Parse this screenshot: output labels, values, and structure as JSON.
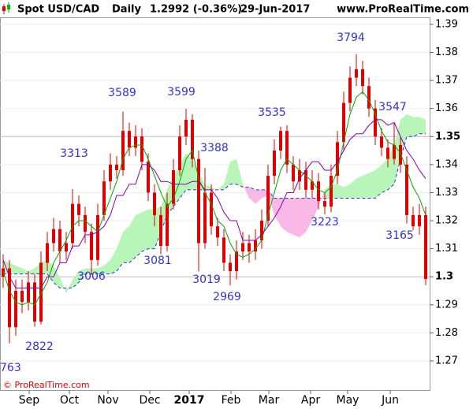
{
  "header": {
    "symbol": "Spot USD/CAD",
    "period": "Daily",
    "quote": "1.2992 (-0.36%)",
    "date": "29-Jun-2017",
    "site": "www.ProRealTime.com"
  },
  "chart_data": {
    "type": "candlestick",
    "candle_color": "#e00000",
    "ohlc": [
      [
        1.3,
        1.308,
        1.296,
        1.303
      ],
      [
        1.303,
        1.306,
        1.2763,
        1.282
      ],
      [
        1.282,
        1.299,
        1.279,
        1.295
      ],
      [
        1.295,
        1.299,
        1.287,
        1.291
      ],
      [
        1.291,
        1.302,
        1.288,
        1.298
      ],
      [
        1.298,
        1.301,
        1.2822,
        1.284
      ],
      [
        1.284,
        1.309,
        1.283,
        1.305
      ],
      [
        1.305,
        1.316,
        1.302,
        1.312
      ],
      [
        1.312,
        1.321,
        1.309,
        1.317
      ],
      [
        1.317,
        1.32,
        1.305,
        1.309
      ],
      [
        1.309,
        1.316,
        1.306,
        1.312
      ],
      [
        1.312,
        1.3313,
        1.31,
        1.326
      ],
      [
        1.326,
        1.329,
        1.318,
        1.322
      ],
      [
        1.322,
        1.325,
        1.312,
        1.316
      ],
      [
        1.316,
        1.319,
        1.3006,
        1.306
      ],
      [
        1.306,
        1.326,
        1.304,
        1.322
      ],
      [
        1.322,
        1.338,
        1.32,
        1.334
      ],
      [
        1.334,
        1.344,
        1.331,
        1.34
      ],
      [
        1.34,
        1.343,
        1.335,
        1.338
      ],
      [
        1.338,
        1.3589,
        1.336,
        1.352
      ],
      [
        1.352,
        1.355,
        1.343,
        1.346
      ],
      [
        1.346,
        1.354,
        1.343,
        1.35
      ],
      [
        1.35,
        1.353,
        1.338,
        1.341
      ],
      [
        1.341,
        1.344,
        1.327,
        1.33
      ],
      [
        1.33,
        1.333,
        1.318,
        1.322
      ],
      [
        1.322,
        1.325,
        1.3081,
        1.311
      ],
      [
        1.311,
        1.33,
        1.309,
        1.326
      ],
      [
        1.326,
        1.342,
        1.324,
        1.338
      ],
      [
        1.338,
        1.354,
        1.336,
        1.35
      ],
      [
        1.35,
        1.3599,
        1.347,
        1.356
      ],
      [
        1.356,
        1.358,
        1.339,
        1.342
      ],
      [
        1.342,
        1.345,
        1.3019,
        1.312
      ],
      [
        1.312,
        1.3388,
        1.31,
        1.33
      ],
      [
        1.33,
        1.333,
        1.315,
        1.318
      ],
      [
        1.318,
        1.321,
        1.311,
        1.314
      ],
      [
        1.314,
        1.317,
        1.302,
        1.305
      ],
      [
        1.305,
        1.308,
        1.2969,
        1.302
      ],
      [
        1.302,
        1.313,
        1.299,
        1.309
      ],
      [
        1.309,
        1.316,
        1.306,
        1.312
      ],
      [
        1.312,
        1.315,
        1.305,
        1.309
      ],
      [
        1.309,
        1.317,
        1.306,
        1.313
      ],
      [
        1.313,
        1.324,
        1.31,
        1.32
      ],
      [
        1.32,
        1.34,
        1.318,
        1.336
      ],
      [
        1.336,
        1.349,
        1.333,
        1.345
      ],
      [
        1.345,
        1.3535,
        1.342,
        1.352
      ],
      [
        1.352,
        1.354,
        1.337,
        1.34
      ],
      [
        1.34,
        1.343,
        1.331,
        1.334
      ],
      [
        1.334,
        1.342,
        1.331,
        1.338
      ],
      [
        1.338,
        1.341,
        1.328,
        1.331
      ],
      [
        1.331,
        1.338,
        1.328,
        1.334
      ],
      [
        1.334,
        1.337,
        1.324,
        1.327
      ],
      [
        1.327,
        1.33,
        1.3223,
        1.325
      ],
      [
        1.325,
        1.34,
        1.323,
        1.336
      ],
      [
        1.336,
        1.352,
        1.333,
        1.348
      ],
      [
        1.348,
        1.366,
        1.345,
        1.362
      ],
      [
        1.362,
        1.375,
        1.359,
        1.371
      ],
      [
        1.371,
        1.3794,
        1.368,
        1.374
      ],
      [
        1.374,
        1.377,
        1.365,
        1.368
      ],
      [
        1.368,
        1.371,
        1.357,
        1.36
      ],
      [
        1.36,
        1.363,
        1.347,
        1.35
      ],
      [
        1.35,
        1.353,
        1.343,
        1.346
      ],
      [
        1.346,
        1.349,
        1.339,
        1.342
      ],
      [
        1.342,
        1.3547,
        1.34,
        1.347
      ],
      [
        1.347,
        1.35,
        1.337,
        1.34
      ],
      [
        1.34,
        1.343,
        1.319,
        1.322
      ],
      [
        1.322,
        1.325,
        1.3165,
        1.318
      ],
      [
        1.318,
        1.326,
        1.315,
        1.322
      ],
      [
        1.322,
        1.325,
        1.297,
        1.2992
      ]
    ],
    "tenkan": {
      "color": "#00aa00",
      "values": [
        1.302,
        1.295,
        1.291,
        1.29,
        1.291,
        1.29,
        1.294,
        1.298,
        1.305,
        1.309,
        1.313,
        1.318,
        1.32,
        1.32,
        1.318,
        1.316,
        1.322,
        1.328,
        1.334,
        1.342,
        1.346,
        1.347,
        1.347,
        1.342,
        1.336,
        1.33,
        1.325,
        1.328,
        1.334,
        1.342,
        1.345,
        1.335,
        1.33,
        1.326,
        1.32,
        1.318,
        1.312,
        1.308,
        1.307,
        1.308,
        1.31,
        1.313,
        1.322,
        1.33,
        1.338,
        1.342,
        1.34,
        1.338,
        1.336,
        1.334,
        1.331,
        1.33,
        1.332,
        1.338,
        1.348,
        1.358,
        1.364,
        1.366,
        1.363,
        1.358,
        1.352,
        1.348,
        1.347,
        1.344,
        1.338,
        1.332,
        1.328,
        1.322
      ]
    },
    "kijun": {
      "color": "#8800aa",
      "values": [
        1.306,
        1.3,
        1.296,
        1.296,
        1.296,
        1.296,
        1.296,
        1.3,
        1.3,
        1.305,
        1.305,
        1.311,
        1.311,
        1.315,
        1.315,
        1.316,
        1.318,
        1.322,
        1.329,
        1.329,
        1.333,
        1.333,
        1.34,
        1.34,
        1.338,
        1.334,
        1.334,
        1.333,
        1.333,
        1.333,
        1.334,
        1.334,
        1.331,
        1.331,
        1.328,
        1.323,
        1.32,
        1.32,
        1.313,
        1.313,
        1.313,
        1.315,
        1.318,
        1.321,
        1.325,
        1.33,
        1.33,
        1.335,
        1.338,
        1.341,
        1.341,
        1.338,
        1.338,
        1.341,
        1.345,
        1.349,
        1.351,
        1.351,
        1.354,
        1.356,
        1.356,
        1.354,
        1.355,
        1.35,
        1.345,
        1.342,
        1.338,
        1.335
      ]
    },
    "cloud": {
      "up_color": "#b8f5b8",
      "down_color": "#f9b8e6",
      "line_color": "#3333dd",
      "span_a": [
        1.306,
        1.305,
        1.304,
        1.303,
        1.302,
        1.303,
        1.305,
        1.306,
        1.304,
        1.3,
        1.294,
        1.299,
        1.302,
        1.303,
        1.303,
        1.303,
        1.304,
        1.306,
        1.31,
        1.316,
        1.318,
        1.322,
        1.323,
        1.324,
        1.324,
        1.325,
        1.331,
        1.336,
        1.34,
        1.344,
        1.342,
        1.337,
        1.333,
        1.332,
        1.331,
        1.333,
        1.341,
        1.342,
        1.333,
        1.328,
        1.326,
        1.328,
        1.329,
        1.322,
        1.318,
        1.316,
        1.315,
        1.314,
        1.316,
        1.32,
        1.325,
        1.331,
        1.333,
        1.333,
        1.332,
        1.333,
        1.335,
        1.336,
        1.337,
        1.338,
        1.34,
        1.342,
        1.347,
        1.356,
        1.358,
        1.357,
        1.357,
        1.356
      ],
      "span_b": [
        1.301,
        1.301,
        1.301,
        1.301,
        1.301,
        1.301,
        1.301,
        1.301,
        1.298,
        1.296,
        1.296,
        1.296,
        1.298,
        1.301,
        1.301,
        1.301,
        1.301,
        1.301,
        1.302,
        1.305,
        1.305,
        1.307,
        1.309,
        1.31,
        1.31,
        1.316,
        1.322,
        1.325,
        1.328,
        1.331,
        1.331,
        1.331,
        1.331,
        1.331,
        1.331,
        1.331,
        1.333,
        1.333,
        1.332,
        1.332,
        1.331,
        1.331,
        1.331,
        1.328,
        1.328,
        1.328,
        1.328,
        1.328,
        1.328,
        1.328,
        1.328,
        1.328,
        1.328,
        1.328,
        1.328,
        1.328,
        1.328,
        1.328,
        1.328,
        1.328,
        1.33,
        1.331,
        1.333,
        1.342,
        1.35,
        1.35,
        1.351,
        1.351
      ]
    },
    "ylim": [
      1.2596,
      1.3925
    ],
    "yticks": [
      1.27,
      1.28,
      1.29,
      1.3,
      1.31,
      1.32,
      1.33,
      1.34,
      1.35,
      1.36,
      1.37,
      1.38,
      1.39
    ],
    "grid": true,
    "x_labels": [
      "Sep",
      "Oct",
      "Nov",
      "Dec",
      "2017",
      "Feb",
      "Mar",
      "Apr",
      "May",
      "Jun"
    ],
    "annotations": [
      "763",
      "2822",
      "3006",
      "3313",
      "3589",
      "3081",
      "3599",
      "3019",
      "3388",
      "2969",
      "3535",
      "3223",
      "3794",
      "3547",
      "3165"
    ],
    "annotation_color": "#3333cc"
  },
  "footer": "© ProRealTime.com"
}
